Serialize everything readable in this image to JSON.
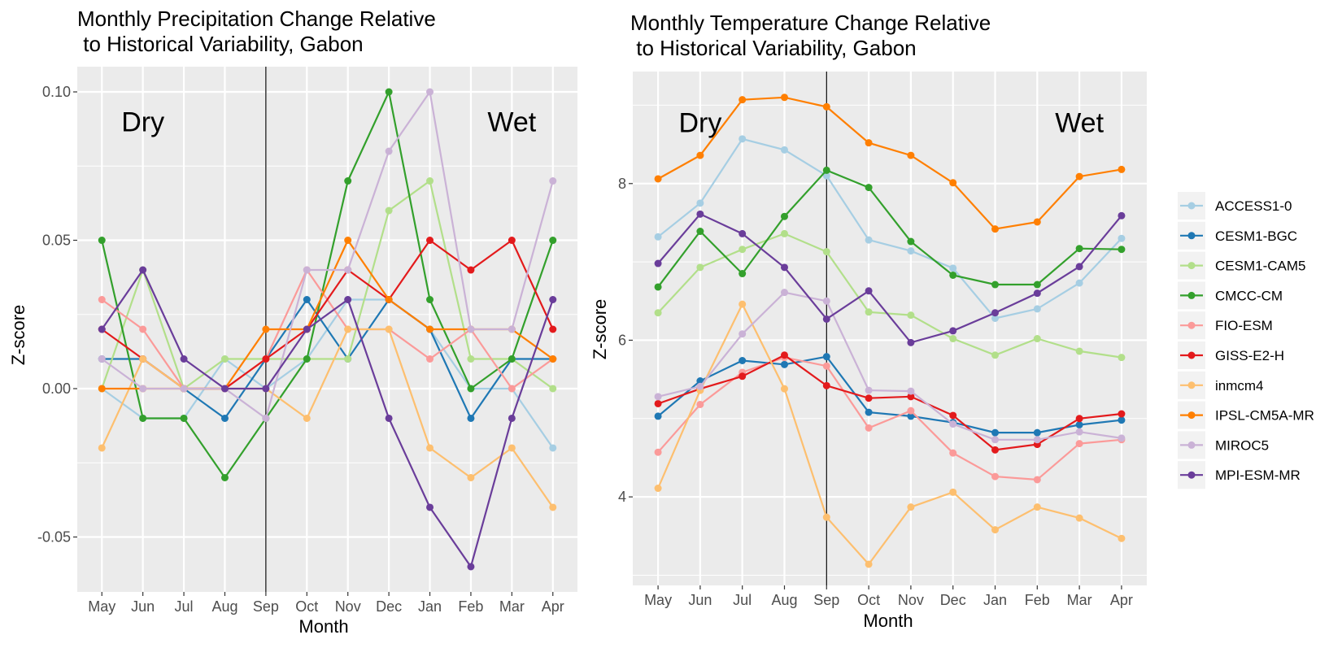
{
  "chart_data": [
    {
      "type": "line",
      "title_line1": "Monthly Precipitation Change Relative",
      "title_line2": " to Historical Variability, Gabon",
      "xlabel": "Month",
      "ylabel": "Z-score",
      "categories": [
        "May",
        "Jun",
        "Jul",
        "Aug",
        "Sep",
        "Oct",
        "Nov",
        "Dec",
        "Jan",
        "Feb",
        "Mar",
        "Apr"
      ],
      "ylim": [
        -0.0685,
        0.1085
      ],
      "yticks": [
        -0.05,
        0.0,
        0.05,
        0.1
      ],
      "ytick_labels": [
        "-0.05",
        "0.00",
        "0.05",
        "0.10"
      ],
      "vline_category": "Sep",
      "annotations": [
        {
          "text": "Dry",
          "category": "Jun",
          "y": 0.09
        },
        {
          "text": "Wet",
          "category": "Mar",
          "y": 0.09
        }
      ],
      "grid": true,
      "series": [
        {
          "name": "ACCESS1-0",
          "values": [
            0.0,
            -0.01,
            -0.01,
            0.01,
            0.0,
            0.01,
            0.03,
            0.03,
            0.02,
            0.0,
            0.0,
            -0.02
          ]
        },
        {
          "name": "CESM1-BGC",
          "values": [
            0.01,
            0.01,
            0.0,
            -0.01,
            0.01,
            0.03,
            0.01,
            0.03,
            0.02,
            -0.01,
            0.01,
            0.01
          ]
        },
        {
          "name": "CESM1-CAM5",
          "values": [
            0.0,
            0.04,
            0.0,
            0.01,
            0.01,
            0.01,
            0.01,
            0.06,
            0.07,
            0.01,
            0.01,
            0.0
          ]
        },
        {
          "name": "CMCC-CM",
          "values": [
            0.05,
            -0.01,
            -0.01,
            -0.03,
            -0.01,
            0.01,
            0.07,
            0.1,
            0.03,
            0.0,
            0.01,
            0.05
          ]
        },
        {
          "name": "FIO-ESM",
          "values": [
            0.03,
            0.02,
            0.0,
            0.0,
            0.01,
            0.04,
            0.02,
            0.02,
            0.01,
            0.02,
            0.0,
            0.01
          ]
        },
        {
          "name": "GISS-E2-H",
          "values": [
            0.02,
            0.01,
            0.0,
            0.0,
            0.01,
            0.02,
            0.04,
            0.03,
            0.05,
            0.04,
            0.05,
            0.02
          ]
        },
        {
          "name": "inmcm4",
          "values": [
            -0.02,
            0.01,
            0.0,
            0.0,
            0.0,
            -0.01,
            0.02,
            0.02,
            -0.02,
            -0.03,
            -0.02,
            -0.04
          ]
        },
        {
          "name": "IPSL-CM5A-MR",
          "values": [
            0.0,
            0.0,
            0.0,
            0.0,
            0.02,
            0.02,
            0.05,
            0.03,
            0.02,
            0.02,
            0.02,
            0.01
          ]
        },
        {
          "name": "MIROC5",
          "values": [
            0.01,
            0.0,
            0.0,
            0.0,
            -0.01,
            0.04,
            0.04,
            0.08,
            0.1,
            0.02,
            0.02,
            0.07
          ]
        },
        {
          "name": "MPI-ESM-MR",
          "values": [
            0.02,
            0.04,
            0.01,
            0.0,
            0.0,
            0.02,
            0.03,
            -0.01,
            -0.04,
            -0.06,
            -0.01,
            0.03
          ]
        }
      ]
    },
    {
      "type": "line",
      "title_line1": "Monthly Temperature Change Relative",
      "title_line2": " to Historical Variability, Gabon",
      "xlabel": "Month",
      "ylabel": "Z-score",
      "categories": [
        "May",
        "Jun",
        "Jul",
        "Aug",
        "Sep",
        "Oct",
        "Nov",
        "Dec",
        "Jan",
        "Feb",
        "Mar",
        "Apr"
      ],
      "ylim": [
        2.87,
        9.43
      ],
      "yticks": [
        4,
        6,
        8
      ],
      "ytick_labels": [
        "4",
        "6",
        "8"
      ],
      "vline_category": "Sep",
      "annotations": [
        {
          "text": "Dry",
          "category": "Jun",
          "y": 8.78
        },
        {
          "text": "Wet",
          "category": "Mar",
          "y": 8.78
        }
      ],
      "grid": true,
      "series": [
        {
          "name": "ACCESS1-0",
          "values": [
            7.32,
            7.75,
            8.57,
            8.43,
            8.1,
            7.28,
            7.14,
            6.92,
            6.28,
            6.4,
            6.73,
            7.3
          ]
        },
        {
          "name": "CESM1-BGC",
          "values": [
            5.03,
            5.48,
            5.74,
            5.69,
            5.79,
            5.08,
            5.03,
            4.95,
            4.82,
            4.82,
            4.92,
            4.98
          ]
        },
        {
          "name": "CESM1-CAM5",
          "values": [
            6.35,
            6.93,
            7.16,
            7.36,
            7.13,
            6.36,
            6.32,
            6.02,
            5.81,
            6.02,
            5.86,
            5.78
          ]
        },
        {
          "name": "CMCC-CM",
          "values": [
            6.68,
            7.39,
            6.85,
            7.58,
            8.17,
            7.95,
            7.26,
            6.83,
            6.71,
            6.71,
            7.17,
            7.16
          ]
        },
        {
          "name": "FIO-ESM",
          "values": [
            4.57,
            5.18,
            5.59,
            5.78,
            5.67,
            4.88,
            5.1,
            4.56,
            4.26,
            4.22,
            4.68,
            4.73
          ]
        },
        {
          "name": "GISS-E2-H",
          "values": [
            5.19,
            5.38,
            5.54,
            5.81,
            5.42,
            5.26,
            5.28,
            5.04,
            4.6,
            4.67,
            5.0,
            5.06
          ]
        },
        {
          "name": "inmcm4",
          "values": [
            4.11,
            5.36,
            6.46,
            5.38,
            3.74,
            3.14,
            3.87,
            4.06,
            3.58,
            3.87,
            3.73,
            3.47
          ]
        },
        {
          "name": "IPSL-CM5A-MR",
          "values": [
            8.06,
            8.36,
            9.07,
            9.1,
            8.98,
            8.52,
            8.36,
            8.01,
            7.42,
            7.51,
            8.09,
            8.18
          ]
        },
        {
          "name": "MIROC5",
          "values": [
            5.28,
            5.41,
            6.08,
            6.61,
            6.5,
            5.36,
            5.35,
            4.93,
            4.73,
            4.73,
            4.83,
            4.75
          ]
        },
        {
          "name": "MPI-ESM-MR",
          "values": [
            6.98,
            7.61,
            7.36,
            6.93,
            6.27,
            6.63,
            5.97,
            6.12,
            6.35,
            6.6,
            6.94,
            7.59
          ]
        }
      ]
    }
  ],
  "legend": {
    "placement": "right",
    "items": [
      {
        "label": "ACCESS1-0",
        "color": "#a6cee3"
      },
      {
        "label": "CESM1-BGC",
        "color": "#1f78b4"
      },
      {
        "label": "CESM1-CAM5",
        "color": "#b2df8a"
      },
      {
        "label": "CMCC-CM",
        "color": "#33a02c"
      },
      {
        "label": "FIO-ESM",
        "color": "#fb9a99"
      },
      {
        "label": "GISS-E2-H",
        "color": "#e31a1c"
      },
      {
        "label": "inmcm4",
        "color": "#fdbf6f"
      },
      {
        "label": "IPSL-CM5A-MR",
        "color": "#ff7f00"
      },
      {
        "label": "MIROC5",
        "color": "#cab2d6"
      },
      {
        "label": "MPI-ESM-MR",
        "color": "#6a3d9a"
      }
    ]
  },
  "colors": {
    "panel_bg": "#ebebeb",
    "grid": "#ffffff",
    "vline": "#000000"
  }
}
